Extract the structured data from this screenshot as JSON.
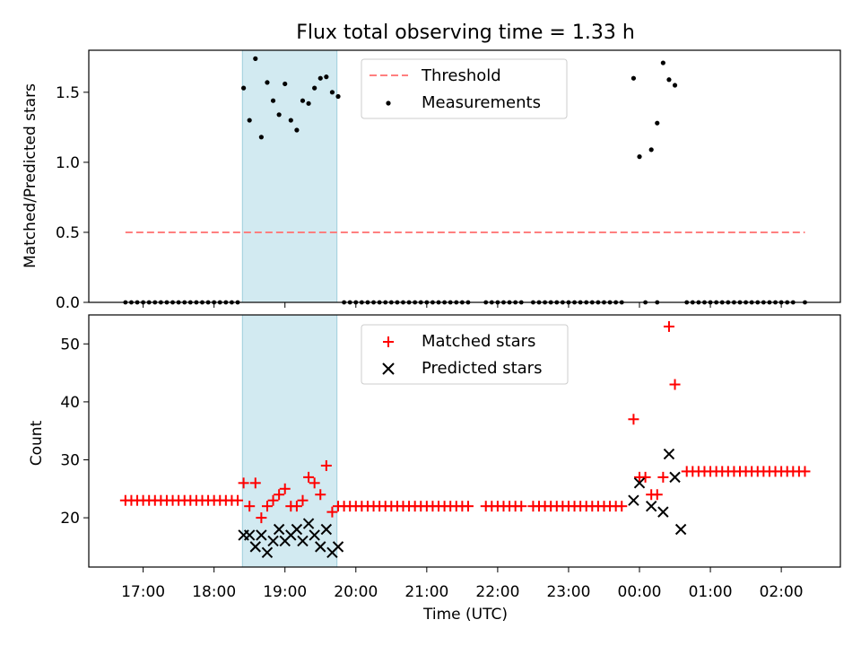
{
  "chart_data": {
    "type": "scatter",
    "title": "Flux total observing time = 1.33 h",
    "xlabel": "Time (UTC)",
    "x_range": [
      "2024-01-01T16:14",
      "2024-01-02T02:50"
    ],
    "x_ticks": [
      "17:00",
      "18:00",
      "19:00",
      "20:00",
      "21:00",
      "22:00",
      "23:00",
      "00:00",
      "01:00",
      "02:00"
    ],
    "x_tick_times": [
      "2024-01-01T17:00",
      "2024-01-01T18:00",
      "2024-01-01T19:00",
      "2024-01-01T20:00",
      "2024-01-01T21:00",
      "2024-01-01T22:00",
      "2024-01-01T23:00",
      "2024-01-02T00:00",
      "2024-01-02T01:00",
      "2024-01-02T02:00"
    ],
    "shaded_span": [
      "2024-01-01T18:24",
      "2024-01-01T19:44"
    ],
    "shade_color": "#add8e6",
    "panels": [
      {
        "ylabel": "Matched/Predicted stars",
        "ylim": [
          0,
          1.8
        ],
        "yticks": [
          0.0,
          0.5,
          1.0,
          1.5
        ],
        "ytick_labels": [
          "0.0",
          "0.5",
          "1.0",
          "1.5"
        ],
        "legend": [
          {
            "label": "Threshold",
            "marker": "dash",
            "color": "#ff7f7f"
          },
          {
            "label": "Measurements",
            "marker": "dot",
            "color": "#000000"
          }
        ],
        "series": [
          {
            "name": "Threshold",
            "kind": "line",
            "color": "#ff7f7f",
            "x": [
              "2024-01-01T16:45",
              "2024-01-02T02:20"
            ],
            "y": [
              0.5,
              0.5
            ]
          },
          {
            "name": "Measurements",
            "kind": "points",
            "color": "#000000",
            "x": [
              "18:25",
              "18:30",
              "18:35",
              "18:40",
              "18:45",
              "18:50",
              "18:55",
              "19:00",
              "19:05",
              "19:10",
              "19:15",
              "19:20",
              "19:25",
              "19:30",
              "19:35",
              "19:40",
              "19:45",
              "23:55",
              "00:00",
              "00:10",
              "00:15",
              "00:20",
              "00:25",
              "00:30"
            ],
            "day_offset": [
              0,
              0,
              0,
              0,
              0,
              0,
              0,
              0,
              0,
              0,
              0,
              0,
              0,
              0,
              0,
              0,
              0,
              0,
              1,
              1,
              1,
              1,
              1,
              1
            ],
            "y": [
              1.53,
              1.3,
              1.74,
              1.18,
              1.57,
              1.44,
              1.34,
              1.56,
              1.3,
              1.23,
              1.44,
              1.42,
              1.53,
              1.6,
              1.61,
              1.5,
              1.47,
              1.6,
              1.04,
              1.09,
              1.28,
              1.71,
              1.59,
              1.55
            ]
          },
          {
            "name": "Measurements (zero)",
            "kind": "zero-points",
            "color": "#000000",
            "ranges": [
              [
                "2024-01-01T16:45",
                "2024-01-01T18:20"
              ],
              [
                "2024-01-01T19:50",
                "2024-01-01T21:35"
              ],
              [
                "2024-01-01T21:50",
                "2024-01-01T22:20"
              ],
              [
                "2024-01-01T22:30",
                "2024-01-01T23:45"
              ],
              [
                "2024-01-02T00:05",
                "2024-01-02T00:05"
              ],
              [
                "2024-01-02T00:15",
                "2024-01-02T00:15"
              ],
              [
                "2024-01-02T00:40",
                "2024-01-02T02:10"
              ],
              [
                "2024-01-02T02:20",
                "2024-01-02T02:20"
              ]
            ]
          }
        ]
      },
      {
        "ylabel": "Count",
        "ylim": [
          11.5,
          55
        ],
        "yticks": [
          20,
          30,
          40,
          50
        ],
        "ytick_labels": [
          "20",
          "30",
          "40",
          "50"
        ],
        "legend": [
          {
            "label": "Matched stars",
            "marker": "plus",
            "color": "#ff0000"
          },
          {
            "label": "Predicted stars",
            "marker": "x",
            "color": "#000000"
          }
        ],
        "series": [
          {
            "name": "Matched stars",
            "kind": "plus",
            "color": "#ff0000",
            "constant_ranges": [
              {
                "from": "2024-01-01T16:45",
                "to": "2024-01-01T18:20",
                "y": 23
              },
              {
                "from": "2024-01-01T19:50",
                "to": "2024-01-01T21:35",
                "y": 22
              },
              {
                "from": "2024-01-01T21:50",
                "to": "2024-01-01T22:20",
                "y": 22
              },
              {
                "from": "2024-01-01T22:30",
                "to": "2024-01-01T23:45",
                "y": 22
              },
              {
                "from": "2024-01-02T00:40",
                "to": "2024-01-02T02:20",
                "y": 28
              }
            ],
            "x": [
              "18:25",
              "18:30",
              "18:35",
              "18:40",
              "18:45",
              "18:50",
              "18:55",
              "19:00",
              "19:05",
              "19:10",
              "19:15",
              "19:20",
              "19:25",
              "19:30",
              "19:35",
              "19:40",
              "19:45",
              "23:55",
              "00:00",
              "00:05",
              "00:10",
              "00:15",
              "00:20",
              "00:25",
              "00:30"
            ],
            "day_offset": [
              0,
              0,
              0,
              0,
              0,
              0,
              0,
              0,
              0,
              0,
              0,
              0,
              0,
              0,
              0,
              0,
              0,
              0,
              1,
              1,
              1,
              1,
              1,
              1,
              1
            ],
            "y": [
              26,
              22,
              26,
              20,
              22,
              23,
              24,
              25,
              22,
              22,
              23,
              27,
              26,
              24,
              29,
              21,
              22,
              37,
              27,
              27,
              24,
              24,
              27,
              53,
              43
            ]
          },
          {
            "name": "Predicted stars",
            "kind": "x",
            "color": "#000000",
            "x": [
              "18:25",
              "18:30",
              "18:35",
              "18:40",
              "18:45",
              "18:50",
              "18:55",
              "19:00",
              "19:05",
              "19:10",
              "19:15",
              "19:20",
              "19:25",
              "19:30",
              "19:35",
              "19:40",
              "19:45",
              "23:55",
              "00:00",
              "00:10",
              "00:20",
              "00:25",
              "00:30",
              "00:35"
            ],
            "day_offset": [
              0,
              0,
              0,
              0,
              0,
              0,
              0,
              0,
              0,
              0,
              0,
              0,
              0,
              0,
              0,
              0,
              0,
              0,
              1,
              1,
              1,
              1,
              1,
              1
            ],
            "y": [
              17,
              17,
              15,
              17,
              14,
              16,
              18,
              16,
              17,
              18,
              16,
              19,
              17,
              15,
              18,
              14,
              15,
              23,
              26,
              22,
              21,
              31,
              27,
              18
            ]
          }
        ]
      }
    ]
  }
}
